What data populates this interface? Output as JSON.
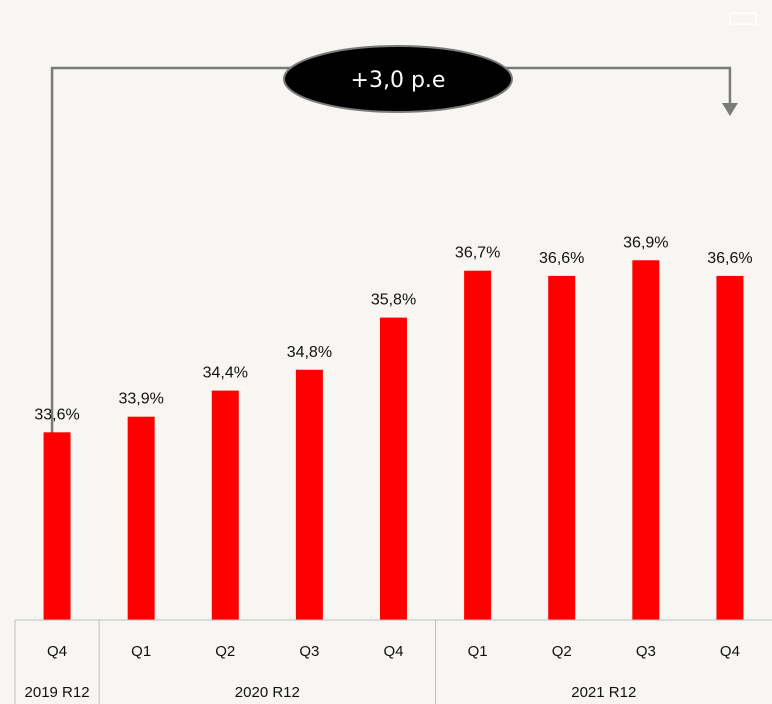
{
  "chart_data": {
    "type": "bar",
    "categories": [
      "Q4",
      "Q1",
      "Q2",
      "Q3",
      "Q4",
      "Q1",
      "Q2",
      "Q3",
      "Q4"
    ],
    "values": [
      33.6,
      33.9,
      34.4,
      34.8,
      35.8,
      36.7,
      36.6,
      36.9,
      36.6
    ],
    "data_labels": [
      "33,6%",
      "33,9%",
      "34,4%",
      "34,8%",
      "35,8%",
      "36,7%",
      "36,6%",
      "36,9%",
      "36,6%"
    ],
    "groups": [
      {
        "label": "2019 R12",
        "start": 0,
        "end": 0
      },
      {
        "label": "2020 R12",
        "start": 1,
        "end": 4
      },
      {
        "label": "2021 R12",
        "start": 5,
        "end": 8
      }
    ],
    "bar_color": "#ff0000",
    "ylim": [
      30,
      37.5
    ],
    "annotation": {
      "text": "+3,0 p.e",
      "from_index": 0,
      "to_index": 8
    }
  }
}
